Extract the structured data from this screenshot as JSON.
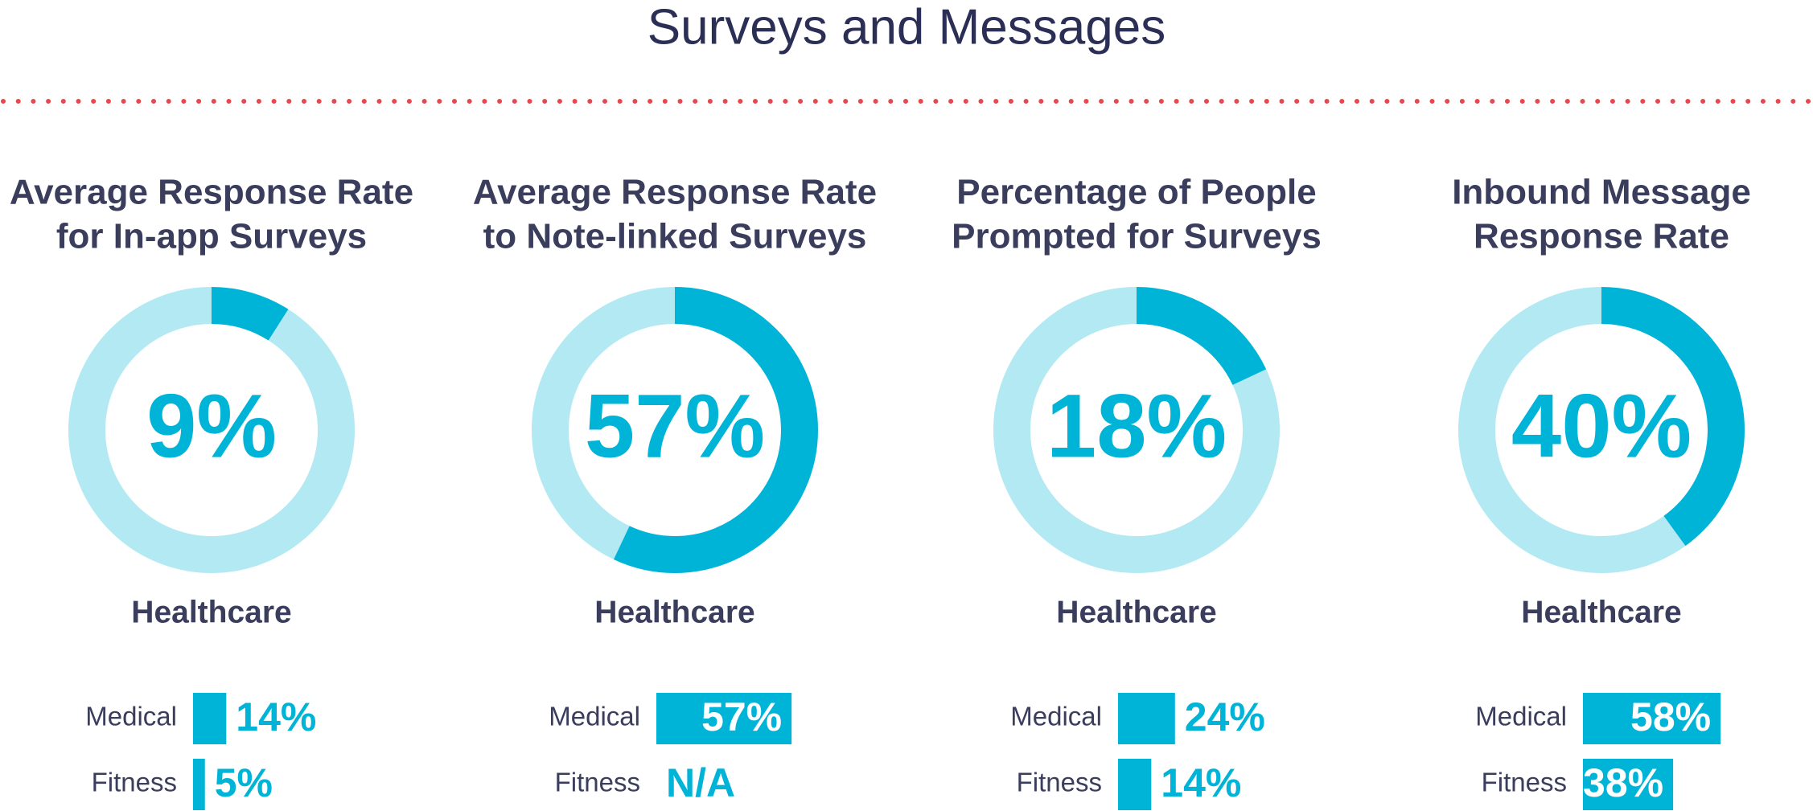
{
  "title": "Surveys and Messages",
  "chart_data": [
    {
      "type": "donut",
      "title": [
        "Average Response Rate",
        "for In-app Surveys"
      ],
      "values": [
        9
      ],
      "value_labels": [
        "9%"
      ],
      "subtitle": "Healthcare",
      "color": "#00b4d8",
      "track_color": "#b2e9f3",
      "bars": {
        "type": "bar",
        "categories": [
          "Medical",
          "Fitness"
        ],
        "values": [
          14,
          5
        ],
        "value_labels": [
          "14%",
          "5%"
        ],
        "color": "#00b4d8"
      }
    },
    {
      "type": "donut",
      "title": [
        "Average Response Rate",
        "to Note-linked Surveys"
      ],
      "values": [
        57
      ],
      "value_labels": [
        "57%"
      ],
      "subtitle": "Healthcare",
      "color": "#00b4d8",
      "track_color": "#b2e9f3",
      "bars": {
        "type": "bar",
        "categories": [
          "Medical",
          "Fitness"
        ],
        "values": [
          57,
          null
        ],
        "value_labels": [
          "57%",
          "N/A"
        ],
        "color": "#00b4d8"
      }
    },
    {
      "type": "donut",
      "title": [
        "Percentage of People",
        "Prompted for Surveys"
      ],
      "values": [
        18
      ],
      "value_labels": [
        "18%"
      ],
      "subtitle": "Healthcare",
      "color": "#00b4d8",
      "track_color": "#b2e9f3",
      "bars": {
        "type": "bar",
        "categories": [
          "Medical",
          "Fitness"
        ],
        "values": [
          24,
          14
        ],
        "value_labels": [
          "24%",
          "14%"
        ],
        "color": "#00b4d8"
      }
    },
    {
      "type": "donut",
      "title": [
        "Inbound Message",
        "Response Rate"
      ],
      "values": [
        40
      ],
      "value_labels": [
        "40%"
      ],
      "subtitle": "Healthcare",
      "color": "#00b4d8",
      "track_color": "#b2e9f3",
      "bars": {
        "type": "bar",
        "categories": [
          "Medical",
          "Fitness"
        ],
        "values": [
          58,
          38
        ],
        "value_labels": [
          "58%",
          "38%"
        ],
        "color": "#00b4d8"
      }
    }
  ]
}
